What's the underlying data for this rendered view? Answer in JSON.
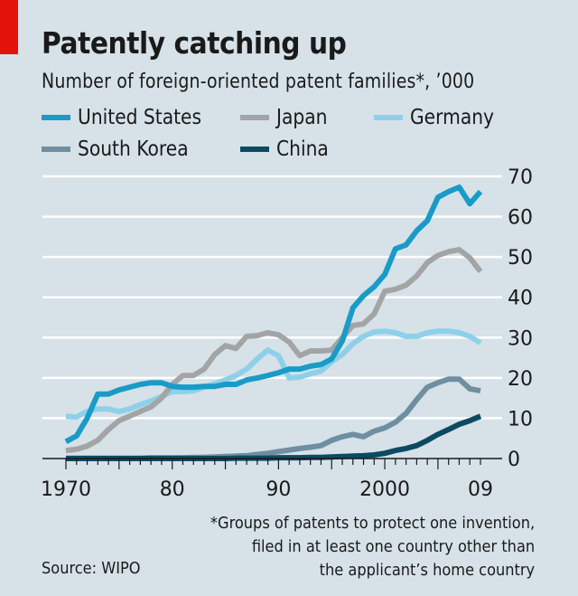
{
  "chart_data": {
    "type": "line",
    "title": "Patently catching up",
    "subtitle": "Number of foreign-oriented patent families*, ’000",
    "xlabel": "",
    "ylabel": "",
    "ylim": [
      0,
      70
    ],
    "xlim": [
      1970,
      2009
    ],
    "yticks": [
      0,
      10,
      20,
      30,
      40,
      50,
      60,
      70
    ],
    "ytick_labels": [
      "0",
      "10",
      "20",
      "30",
      "40",
      "50",
      "60",
      "70"
    ],
    "xtick_labels": [
      {
        "year": 1970,
        "label": "1970"
      },
      {
        "year": 1980,
        "label": "80"
      },
      {
        "year": 1990,
        "label": "90"
      },
      {
        "year": 2000,
        "label": "2000"
      },
      {
        "year": 2009,
        "label": "09"
      }
    ],
    "grid": true,
    "legend_position": "top-left",
    "x": [
      1970,
      1971,
      1972,
      1973,
      1974,
      1975,
      1976,
      1977,
      1978,
      1979,
      1980,
      1981,
      1982,
      1983,
      1984,
      1985,
      1986,
      1987,
      1988,
      1989,
      1990,
      1991,
      1992,
      1993,
      1994,
      1995,
      1996,
      1997,
      1998,
      1999,
      2000,
      2001,
      2002,
      2003,
      2004,
      2005,
      2006,
      2007,
      2008,
      2009
    ],
    "series": [
      {
        "name": "United States",
        "color": "#1a9bc7",
        "values": [
          4.2,
          5.6,
          10,
          16,
          16,
          17,
          17.7,
          18.4,
          18.8,
          18.8,
          17.9,
          17.7,
          17.7,
          17.9,
          17.9,
          18.4,
          18.4,
          19.5,
          20,
          20.6,
          21.3,
          22.2,
          22.2,
          22.9,
          23.3,
          24.7,
          29.2,
          37.4,
          40.4,
          42.6,
          45.7,
          52,
          53,
          56.5,
          59,
          64.8,
          66.2,
          67.3,
          63.2,
          66.2
        ]
      },
      {
        "name": "Japan",
        "color": "#a3a4a6",
        "values": [
          2,
          2.3,
          3.1,
          4.5,
          7.2,
          9.4,
          10.5,
          11.7,
          12.8,
          15,
          18.4,
          20.6,
          20.6,
          22.2,
          25.8,
          28,
          27.3,
          30.3,
          30.5,
          31.2,
          30.7,
          28.9,
          25.5,
          26.7,
          26.7,
          26.9,
          30,
          33,
          33.4,
          35.9,
          41.5,
          42,
          43,
          45.3,
          48.6,
          50.4,
          51.3,
          51.8,
          49.8,
          46.4
        ]
      },
      {
        "name": "Germany",
        "color": "#8ed0ea",
        "values": [
          10.5,
          10.3,
          11.7,
          12.3,
          12.3,
          11.7,
          12.3,
          13.4,
          14.3,
          15.4,
          16.6,
          16.6,
          16.8,
          17.7,
          18.6,
          19.5,
          20.6,
          22.2,
          24.7,
          26.9,
          25.5,
          20,
          20.2,
          21,
          21.7,
          24,
          25.8,
          28.5,
          30.3,
          31.4,
          31.6,
          31.2,
          30.3,
          30.3,
          31.2,
          31.6,
          31.6,
          31.2,
          30.3,
          28.7
        ]
      },
      {
        "name": "South Korea",
        "color": "#6f8fa0",
        "values": [
          0.1,
          0.1,
          0.1,
          0.1,
          0.1,
          0.1,
          0.1,
          0.1,
          0.2,
          0.2,
          0.2,
          0.2,
          0.3,
          0.3,
          0.4,
          0.5,
          0.6,
          0.7,
          1,
          1.3,
          1.7,
          2.1,
          2.5,
          2.8,
          3.2,
          4.5,
          5.4,
          6,
          5.4,
          6.8,
          7.6,
          9,
          11.2,
          14.6,
          17.7,
          18.8,
          19.7,
          19.7,
          17.3,
          16.8
        ]
      },
      {
        "name": "China",
        "color": "#0d4a62",
        "values": [
          0,
          0,
          0,
          0,
          0,
          0,
          0,
          0,
          0,
          0,
          0,
          0,
          0,
          0,
          0,
          0,
          0.1,
          0.1,
          0.1,
          0.1,
          0.2,
          0.2,
          0.2,
          0.3,
          0.3,
          0.4,
          0.5,
          0.6,
          0.7,
          0.9,
          1.3,
          2,
          2.5,
          3.2,
          4.5,
          6,
          7.2,
          8.5,
          9.4,
          10.5
        ]
      }
    ],
    "footnote": [
      "*Groups of patents to protect one invention,",
      "filed in at least one country other than",
      "the applicant’s home country"
    ],
    "source": "Source: WIPO"
  },
  "header": {
    "title": "Patently catching up",
    "subtitle": "Number of foreign-oriented patent families*, ’000"
  },
  "legend": [
    {
      "label": "United States",
      "color": "#1a9bc7"
    },
    {
      "label": "Japan",
      "color": "#a3a4a6"
    },
    {
      "label": "Germany",
      "color": "#8ed0ea"
    },
    {
      "label": "South Korea",
      "color": "#6f8fa0"
    },
    {
      "label": "China",
      "color": "#0d4a62"
    }
  ],
  "footer": {
    "footnote_line1": "*Groups of patents to protect one invention,",
    "footnote_line2": "filed in at least one country other than",
    "footnote_line3": "the applicant’s home country",
    "source": "Source: WIPO"
  },
  "colors": {
    "background": "#d6e2e8",
    "gridline": "#ffffff",
    "accent_red": "#e3120b",
    "axis": "#1a1a1a"
  }
}
